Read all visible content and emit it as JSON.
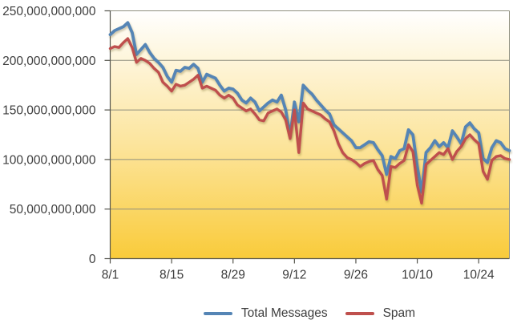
{
  "chart_data": {
    "type": "line",
    "x_start": "8/1",
    "x_end": "10/31",
    "x_step": "1 day",
    "x_tick_labels": [
      "8/1",
      "8/15",
      "8/29",
      "9/12",
      "9/26",
      "10/10",
      "10/24"
    ],
    "x_tick_positions_days": [
      0,
      14,
      28,
      42,
      56,
      70,
      84
    ],
    "x_range_days": 91,
    "y_tick_labels": [
      "0",
      "50,000,000,000",
      "100,000,000,000",
      "150,000,000,000",
      "200,000,000,000",
      "250,000,000,000"
    ],
    "ylim_billions": [
      0,
      250
    ],
    "values_scale": 1000000000,
    "grid": "horizontal",
    "legend_position": "bottom",
    "plot_background": {
      "top": "#ffffff",
      "bottom": "#f9cb3a"
    },
    "series": [
      {
        "name": "Total Messages",
        "color": "#5585b5",
        "values_billions": [
          226,
          230,
          232,
          234,
          238,
          228,
          206,
          211,
          216,
          208,
          202,
          198,
          193,
          184,
          178,
          190,
          189,
          193,
          192,
          196,
          192,
          178,
          186,
          184,
          182,
          175,
          169,
          172,
          171,
          167,
          160,
          157,
          162,
          158,
          149,
          153,
          157,
          160,
          158,
          165,
          150,
          124,
          158,
          138,
          175,
          170,
          166,
          160,
          155,
          150,
          146,
          135,
          131,
          127,
          123,
          119,
          112,
          112,
          115,
          118,
          117,
          110,
          104,
          85,
          103,
          101,
          109,
          111,
          130,
          125,
          93,
          67,
          107,
          112,
          119,
          113,
          117,
          112,
          129,
          123,
          116,
          133,
          137,
          131,
          127,
          101,
          97,
          112,
          119,
          117,
          111,
          109
        ]
      },
      {
        "name": "Spam",
        "color": "#bf504d",
        "values_billions": [
          212,
          214,
          213,
          218,
          222,
          213,
          198,
          202,
          200,
          197,
          192,
          188,
          178,
          174,
          169,
          176,
          174,
          175,
          178,
          181,
          185,
          172,
          174,
          172,
          170,
          165,
          162,
          165,
          162,
          155,
          152,
          149,
          151,
          146,
          140,
          139,
          147,
          149,
          151,
          148,
          140,
          121,
          150,
          107,
          157,
          151,
          149,
          147,
          145,
          141,
          138,
          129,
          116,
          107,
          102,
          100,
          97,
          93,
          96,
          98,
          99,
          90,
          84,
          60,
          93,
          92,
          96,
          99,
          115,
          108,
          74,
          56,
          95,
          99,
          103,
          107,
          105,
          111,
          100,
          108,
          113,
          121,
          125,
          120,
          116,
          88,
          80,
          99,
          103,
          104,
          101,
          100
        ]
      }
    ]
  }
}
